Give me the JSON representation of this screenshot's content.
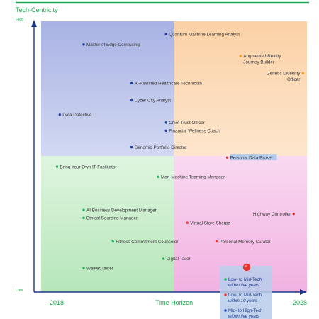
{
  "chart_data": {
    "type": "scatter",
    "title": "Tech-Centricity",
    "xlabel": "Time Horizon",
    "y_high_label": "High",
    "y_low_label": "Low",
    "x_start_label": "2018",
    "x_end_label": "2028",
    "xlim": [
      2018,
      2028
    ],
    "ylim": [
      0,
      100
    ],
    "grid": false,
    "legend_position": "bottom-right",
    "colors": {
      "green": "#1fb45a",
      "blue": "#1d3fa8",
      "orange": "#f39a2a",
      "red": "#e8322e",
      "accent": "#1aa84b",
      "axis": "#1b3a8a"
    },
    "quadrants": [
      {
        "name": "top-left",
        "color": "#bcc4ea"
      },
      {
        "name": "top-right",
        "color": "#fcd9b4"
      },
      {
        "name": "bottom-left",
        "color": "#c4ecc6"
      },
      {
        "name": "bottom-right",
        "color": "#f5c0e6"
      }
    ],
    "points": [
      {
        "label": "Quantum Machine Learning Analyst",
        "x": 2022.7,
        "y": 95.2,
        "color": "blue",
        "lines": [
          "Quantum Machine Learning Analyst"
        ],
        "anchor": "start"
      },
      {
        "label": "Master of Edge Computing",
        "x": 2019.6,
        "y": 91.4,
        "color": "blue",
        "lines": [
          "Master of Edge Computing"
        ],
        "anchor": "start"
      },
      {
        "label": "Augmented Reality Journey Builder",
        "x": 2025.5,
        "y": 87.2,
        "color": "orange",
        "lines": [
          "Augmented Reality",
          "Journey Builder"
        ],
        "anchor": "start"
      },
      {
        "label": "Genetic Diversity Officer",
        "x": 2027.85,
        "y": 80.8,
        "color": "orange",
        "lines": [
          "Genetic Diversity",
          "Officer"
        ],
        "anchor": "end"
      },
      {
        "label": "AI-Assisted Healthcare Technician",
        "x": 2021.4,
        "y": 77.1,
        "color": "blue",
        "lines": [
          "AI-Assisted Healthcare Technician"
        ],
        "anchor": "start"
      },
      {
        "label": "Cyber City Analyst",
        "x": 2021.4,
        "y": 70.8,
        "color": "blue",
        "lines": [
          "Cyber City Analyst"
        ],
        "anchor": "start"
      },
      {
        "label": "Data Detective",
        "x": 2018.7,
        "y": 65.5,
        "color": "blue",
        "lines": [
          "Data Detective"
        ],
        "anchor": "start"
      },
      {
        "label": "Chief Trust Officer",
        "x": 2022.7,
        "y": 62.6,
        "color": "blue",
        "lines": [
          "Chief Trust Officer"
        ],
        "anchor": "start"
      },
      {
        "label": "Financial Wellness Coach",
        "x": 2022.7,
        "y": 59.6,
        "color": "blue",
        "lines": [
          "Financial Wellness Coach"
        ],
        "anchor": "start"
      },
      {
        "label": "Genomic Portfolio Director",
        "x": 2021.4,
        "y": 53.5,
        "color": "blue",
        "lines": [
          "Genomic Portfolio Director"
        ],
        "anchor": "start"
      },
      {
        "label": "Personal Data Broker",
        "x": 2025.0,
        "y": 49.7,
        "color": "red",
        "lines": [
          "Personal Data Broker"
        ],
        "anchor": "start",
        "highlight": true
      },
      {
        "label": "Bring Your Own IT Facilitator",
        "x": 2018.6,
        "y": 46.3,
        "color": "green",
        "lines": [
          "Bring Your Own IT Facilitator"
        ],
        "anchor": "start"
      },
      {
        "label": "Man-Machine Teaming Manager",
        "x": 2022.4,
        "y": 42.6,
        "color": "green",
        "lines": [
          "Man-Machine Teaming Manager"
        ],
        "anchor": "start"
      },
      {
        "label": "AI Business Development Manager",
        "x": 2019.6,
        "y": 30.3,
        "color": "green",
        "lines": [
          "AI Business Development Manager"
        ],
        "anchor": "start"
      },
      {
        "label": "Highway Controller",
        "x": 2027.5,
        "y": 28.9,
        "color": "red",
        "lines": [
          "Highway Controller"
        ],
        "anchor": "end"
      },
      {
        "label": "Ethical Sourcing Manager",
        "x": 2019.6,
        "y": 27.4,
        "color": "green",
        "lines": [
          "Ethical Sourcing Manager"
        ],
        "anchor": "start"
      },
      {
        "label": "Virtual Store Sherpa",
        "x": 2023.5,
        "y": 25.6,
        "color": "red",
        "lines": [
          "Virtual Store Sherpa"
        ],
        "anchor": "start"
      },
      {
        "label": "Fitness Commitment Counselor",
        "x": 2020.7,
        "y": 18.7,
        "color": "green",
        "lines": [
          "Fitness Commitment Counselor"
        ],
        "anchor": "start"
      },
      {
        "label": "Personal Memory Curator",
        "x": 2024.6,
        "y": 18.7,
        "color": "red",
        "lines": [
          "Personal Memory Curator"
        ],
        "anchor": "start"
      },
      {
        "label": "Digital Tailor",
        "x": 2022.6,
        "y": 12.3,
        "color": "green",
        "lines": [
          "Digital Tailor"
        ],
        "anchor": "start"
      },
      {
        "label": "Walker/Talker",
        "x": 2019.6,
        "y": 8.8,
        "color": "green",
        "lines": [
          "Walker/Talker"
        ],
        "anchor": "start"
      }
    ],
    "legend": [
      {
        "color": "green",
        "text": "Low- to Mid-Tech",
        "sub": "within five years"
      },
      {
        "color": "red",
        "text": "Low- to Mid-Tech",
        "sub": "within 10 years"
      },
      {
        "color": "blue",
        "text": "Mid- to High-Tech",
        "sub": "within five years"
      }
    ]
  }
}
